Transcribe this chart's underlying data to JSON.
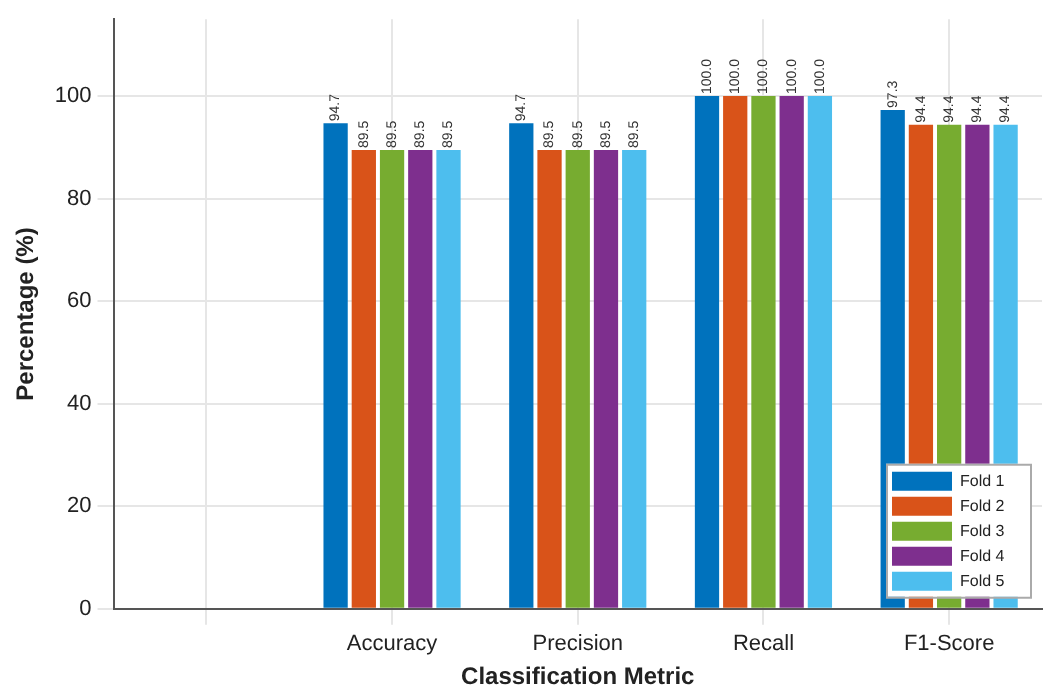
{
  "chart_data": {
    "type": "bar",
    "xlabel": "Classification Metric",
    "ylabel": "Percentage (%)",
    "categories": [
      null,
      "Accuracy",
      "Precision",
      "Recall",
      "F1-Score"
    ],
    "series": [
      {
        "name": "Fold 1",
        "color": "#0072bd",
        "values": [
          null,
          94.7,
          94.7,
          100,
          97.3
        ],
        "value_labels": [
          null,
          "94.7",
          "94.7",
          "100.0",
          "97.3"
        ]
      },
      {
        "name": "Fold 2",
        "color": "#d95319",
        "values": [
          null,
          89.5,
          89.5,
          100,
          94.4
        ],
        "value_labels": [
          null,
          "89.5",
          "89.5",
          "100.0",
          "94.4"
        ]
      },
      {
        "name": "Fold 3",
        "color": "#77ac30",
        "values": [
          null,
          89.5,
          89.5,
          100,
          94.4
        ],
        "value_labels": [
          null,
          "89.5",
          "89.5",
          "100.0",
          "94.4"
        ]
      },
      {
        "name": "Fold 4",
        "color": "#7e2f8e",
        "values": [
          null,
          89.5,
          89.5,
          100,
          94.4
        ],
        "value_labels": [
          null,
          "89.5",
          "89.5",
          "100.0",
          "94.4"
        ]
      },
      {
        "name": "Fold 5",
        "color": "#4dbeee",
        "values": [
          null,
          89.5,
          89.5,
          100,
          94.4
        ],
        "value_labels": [
          null,
          "89.5",
          "89.5",
          "100.0",
          "94.4"
        ]
      }
    ],
    "ylim": [
      0,
      115
    ],
    "yticks": [
      0,
      20,
      40,
      60,
      80,
      100
    ],
    "grid": true,
    "legend": "bottom right"
  }
}
